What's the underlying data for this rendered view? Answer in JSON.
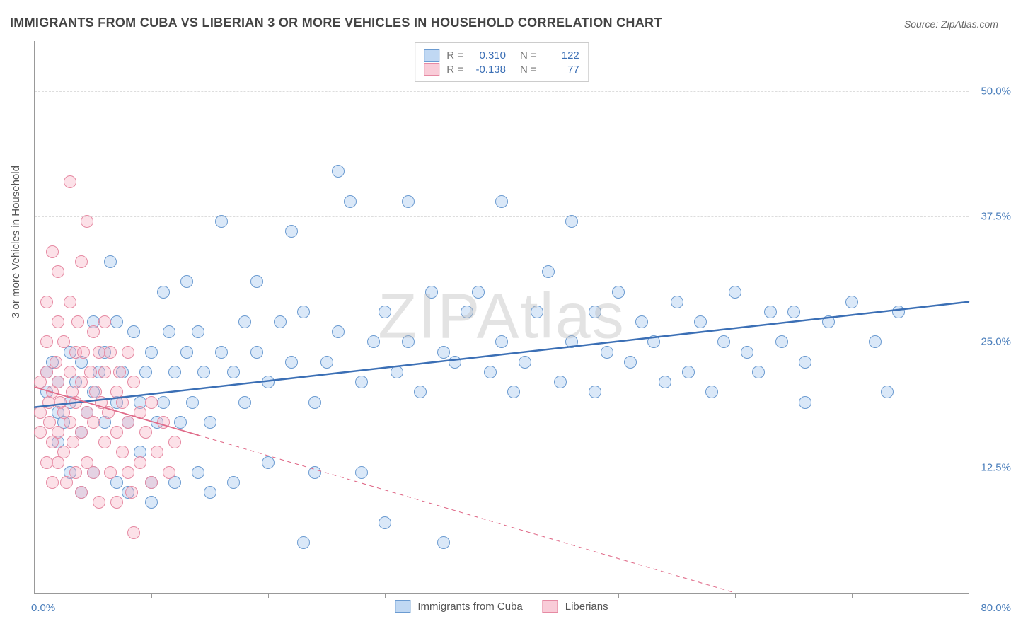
{
  "title": "IMMIGRANTS FROM CUBA VS LIBERIAN 3 OR MORE VEHICLES IN HOUSEHOLD CORRELATION CHART",
  "source": "Source: ZipAtlas.com",
  "ylabel": "3 or more Vehicles in Household",
  "watermark": "ZIPAtlas",
  "chart": {
    "type": "scatter",
    "xlim": [
      0,
      80
    ],
    "ylim": [
      0,
      55
    ],
    "x_tick_step": 10,
    "y_ticks": [
      12.5,
      25.0,
      37.5,
      50.0
    ],
    "y_tick_labels": [
      "12.5%",
      "25.0%",
      "37.5%",
      "50.0%"
    ],
    "x_label_min": "0.0%",
    "x_label_max": "80.0%",
    "background_color": "#ffffff",
    "grid_color": "#dddddd",
    "axis_color": "#999999",
    "tick_label_color": "#4a7ebb",
    "marker_radius": 9,
    "series": [
      {
        "name": "Immigrants from Cuba",
        "color_fill": "rgba(150,190,235,0.35)",
        "color_stroke": "#6b9bd1",
        "R": 0.31,
        "N": 122,
        "trend": {
          "x1": 0,
          "y1": 18.5,
          "x2": 80,
          "y2": 29.0,
          "solid_until_x": 80,
          "color": "#3b6fb5",
          "width": 2.5
        },
        "points": [
          [
            1,
            20
          ],
          [
            1,
            22
          ],
          [
            1.5,
            23
          ],
          [
            2,
            18
          ],
          [
            2,
            21
          ],
          [
            2,
            15
          ],
          [
            2.5,
            17
          ],
          [
            3,
            19
          ],
          [
            3,
            24
          ],
          [
            3,
            12
          ],
          [
            3.5,
            21
          ],
          [
            4,
            16
          ],
          [
            4,
            23
          ],
          [
            4,
            10
          ],
          [
            4.5,
            18
          ],
          [
            5,
            20
          ],
          [
            5,
            12
          ],
          [
            5,
            27
          ],
          [
            5.5,
            22
          ],
          [
            6,
            17
          ],
          [
            6,
            24
          ],
          [
            6.5,
            33
          ],
          [
            7,
            19
          ],
          [
            7,
            27
          ],
          [
            7,
            11
          ],
          [
            7.5,
            22
          ],
          [
            8,
            17
          ],
          [
            8,
            10
          ],
          [
            8.5,
            26
          ],
          [
            9,
            19
          ],
          [
            9,
            14
          ],
          [
            9.5,
            22
          ],
          [
            10,
            11
          ],
          [
            10,
            9
          ],
          [
            10,
            24
          ],
          [
            10.5,
            17
          ],
          [
            11,
            30
          ],
          [
            11,
            19
          ],
          [
            11.5,
            26
          ],
          [
            12,
            22
          ],
          [
            12,
            11
          ],
          [
            12.5,
            17
          ],
          [
            13,
            24
          ],
          [
            13,
            31
          ],
          [
            13.5,
            19
          ],
          [
            14,
            26
          ],
          [
            14,
            12
          ],
          [
            14.5,
            22
          ],
          [
            15,
            17
          ],
          [
            15,
            10
          ],
          [
            16,
            24
          ],
          [
            16,
            37
          ],
          [
            17,
            22
          ],
          [
            17,
            11
          ],
          [
            18,
            27
          ],
          [
            18,
            19
          ],
          [
            19,
            24
          ],
          [
            19,
            31
          ],
          [
            20,
            21
          ],
          [
            20,
            13
          ],
          [
            21,
            27
          ],
          [
            22,
            23
          ],
          [
            22,
            36
          ],
          [
            23,
            28
          ],
          [
            23,
            5
          ],
          [
            24,
            19
          ],
          [
            24,
            12
          ],
          [
            25,
            23
          ],
          [
            26,
            26
          ],
          [
            26,
            42
          ],
          [
            27,
            39
          ],
          [
            28,
            21
          ],
          [
            28,
            12
          ],
          [
            29,
            25
          ],
          [
            30,
            28
          ],
          [
            30,
            7
          ],
          [
            31,
            22
          ],
          [
            32,
            39
          ],
          [
            32,
            25
          ],
          [
            33,
            20
          ],
          [
            34,
            30
          ],
          [
            35,
            24
          ],
          [
            35,
            5
          ],
          [
            36,
            23
          ],
          [
            37,
            28
          ],
          [
            38,
            30
          ],
          [
            39,
            22
          ],
          [
            40,
            25
          ],
          [
            40,
            39
          ],
          [
            41,
            20
          ],
          [
            42,
            23
          ],
          [
            43,
            28
          ],
          [
            44,
            32
          ],
          [
            45,
            21
          ],
          [
            46,
            25
          ],
          [
            46,
            37
          ],
          [
            48,
            28
          ],
          [
            48,
            20
          ],
          [
            49,
            24
          ],
          [
            50,
            30
          ],
          [
            51,
            23
          ],
          [
            52,
            27
          ],
          [
            53,
            25
          ],
          [
            54,
            21
          ],
          [
            55,
            29
          ],
          [
            56,
            22
          ],
          [
            57,
            27
          ],
          [
            58,
            20
          ],
          [
            59,
            25
          ],
          [
            60,
            30
          ],
          [
            61,
            24
          ],
          [
            62,
            22
          ],
          [
            63,
            28
          ],
          [
            64,
            25
          ],
          [
            65,
            28
          ],
          [
            66,
            23
          ],
          [
            66,
            19
          ],
          [
            68,
            27
          ],
          [
            70,
            29
          ],
          [
            72,
            25
          ],
          [
            73,
            20
          ],
          [
            74,
            28
          ]
        ]
      },
      {
        "name": "Liberians",
        "color_fill": "rgba(245,170,190,0.35)",
        "color_stroke": "#e68aa3",
        "R": -0.138,
        "N": 77,
        "trend": {
          "x1": 0,
          "y1": 20.5,
          "x2": 60,
          "y2": 0,
          "solid_until_x": 14,
          "color": "#e06c8a",
          "width": 1.8
        },
        "points": [
          [
            0.5,
            18
          ],
          [
            0.5,
            21
          ],
          [
            0.5,
            16
          ],
          [
            1,
            29
          ],
          [
            1,
            22
          ],
          [
            1,
            13
          ],
          [
            1,
            25
          ],
          [
            1.2,
            19
          ],
          [
            1.3,
            17
          ],
          [
            1.5,
            34
          ],
          [
            1.5,
            20
          ],
          [
            1.5,
            15
          ],
          [
            1.5,
            11
          ],
          [
            1.8,
            23
          ],
          [
            2,
            27
          ],
          [
            2,
            21
          ],
          [
            2,
            16
          ],
          [
            2,
            13
          ],
          [
            2,
            32
          ],
          [
            2.2,
            19
          ],
          [
            2.5,
            25
          ],
          [
            2.5,
            18
          ],
          [
            2.5,
            14
          ],
          [
            2.7,
            11
          ],
          [
            3,
            29
          ],
          [
            3,
            22
          ],
          [
            3,
            17
          ],
          [
            3,
            41
          ],
          [
            3.2,
            20
          ],
          [
            3.3,
            15
          ],
          [
            3.5,
            24
          ],
          [
            3.5,
            12
          ],
          [
            3.5,
            19
          ],
          [
            3.7,
            27
          ],
          [
            4,
            21
          ],
          [
            4,
            16
          ],
          [
            4,
            33
          ],
          [
            4,
            10
          ],
          [
            4.2,
            24
          ],
          [
            4.5,
            18
          ],
          [
            4.5,
            13
          ],
          [
            4.5,
            37
          ],
          [
            4.8,
            22
          ],
          [
            5,
            26
          ],
          [
            5,
            17
          ],
          [
            5,
            12
          ],
          [
            5.2,
            20
          ],
          [
            5.5,
            24
          ],
          [
            5.5,
            9
          ],
          [
            5.7,
            19
          ],
          [
            6,
            22
          ],
          [
            6,
            15
          ],
          [
            6,
            27
          ],
          [
            6.3,
            18
          ],
          [
            6.5,
            12
          ],
          [
            6.5,
            24
          ],
          [
            7,
            20
          ],
          [
            7,
            16
          ],
          [
            7,
            9
          ],
          [
            7.3,
            22
          ],
          [
            7.5,
            14
          ],
          [
            7.5,
            19
          ],
          [
            8,
            24
          ],
          [
            8,
            12
          ],
          [
            8,
            17
          ],
          [
            8.3,
            10
          ],
          [
            8.5,
            21
          ],
          [
            8.5,
            6
          ],
          [
            9,
            18
          ],
          [
            9,
            13
          ],
          [
            9.5,
            16
          ],
          [
            10,
            19
          ],
          [
            10,
            11
          ],
          [
            10.5,
            14
          ],
          [
            11,
            17
          ],
          [
            11.5,
            12
          ],
          [
            12,
            15
          ]
        ]
      }
    ]
  },
  "legend_top": {
    "rows": [
      {
        "swatch": "blue",
        "r_label": "R =",
        "r_value": "0.310",
        "n_label": "N =",
        "n_value": "122"
      },
      {
        "swatch": "pink",
        "r_label": "R =",
        "r_value": "-0.138",
        "n_label": "N =",
        "n_value": "77"
      }
    ]
  },
  "legend_bottom": {
    "items": [
      {
        "swatch": "blue",
        "label": "Immigrants from Cuba"
      },
      {
        "swatch": "pink",
        "label": "Liberians"
      }
    ]
  }
}
